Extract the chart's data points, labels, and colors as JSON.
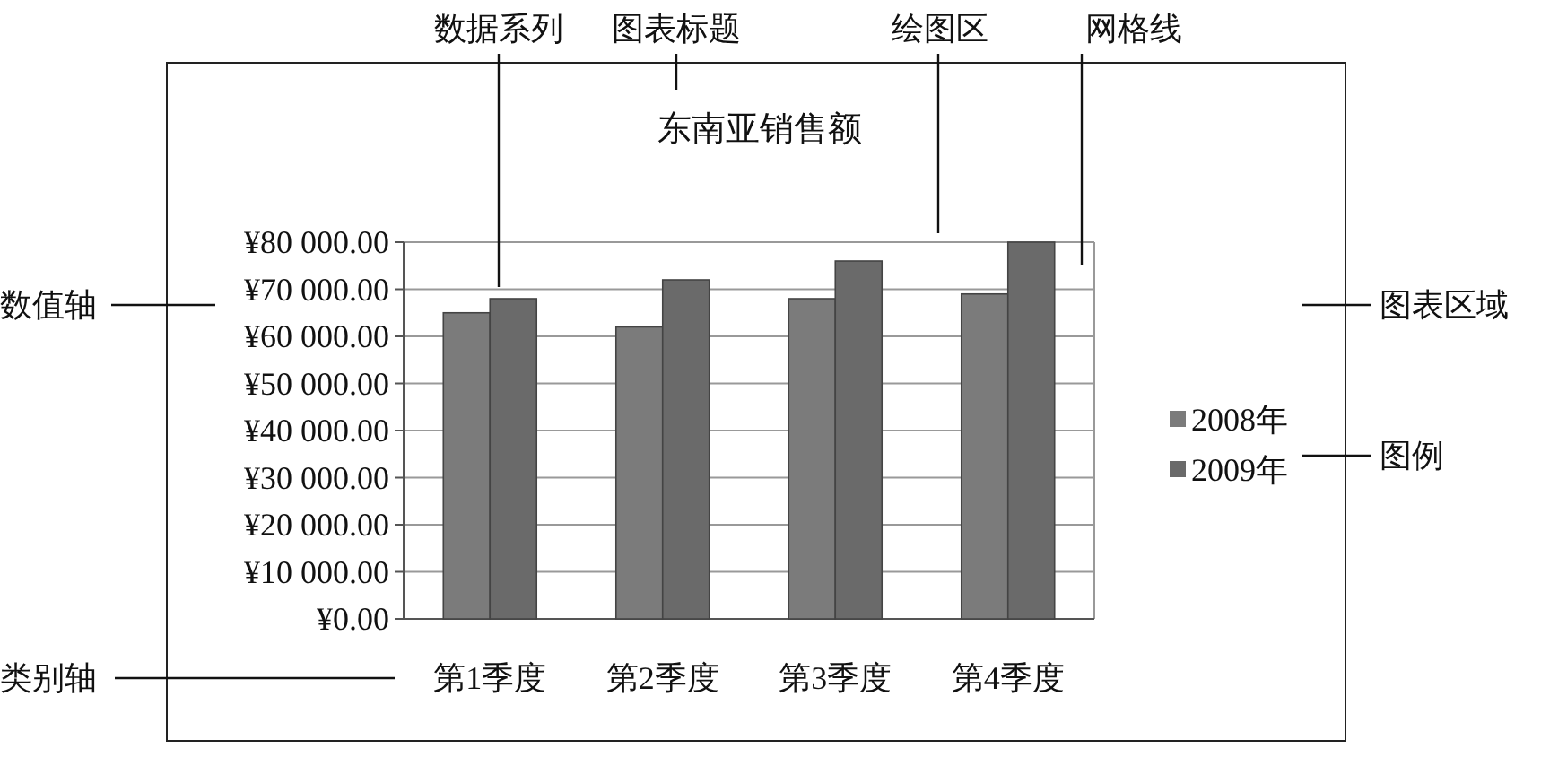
{
  "chart_data": {
    "type": "bar",
    "title": "东南亚销售额",
    "categories": [
      "第1季度",
      "第2季度",
      "第3季度",
      "第4季度"
    ],
    "series": [
      {
        "name": "2008年",
        "color": "#7b7b7b",
        "values": [
          65000,
          62000,
          68000,
          69000
        ]
      },
      {
        "name": "2009年",
        "color": "#6a6a6a",
        "values": [
          68000,
          72000,
          76000,
          80000
        ]
      }
    ],
    "ylim": [
      0,
      80000
    ],
    "yticks": [
      {
        "value": 0,
        "label": "¥0.00"
      },
      {
        "value": 10000,
        "label": "¥10 000.00"
      },
      {
        "value": 20000,
        "label": "¥20 000.00"
      },
      {
        "value": 30000,
        "label": "¥30 000.00"
      },
      {
        "value": 40000,
        "label": "¥40 000.00"
      },
      {
        "value": 50000,
        "label": "¥50 000.00"
      },
      {
        "value": 60000,
        "label": "¥60 000.00"
      },
      {
        "value": 70000,
        "label": "¥70 000.00"
      },
      {
        "value": 80000,
        "label": "¥80 000.00"
      }
    ],
    "grid": "y",
    "legend": "right",
    "annotations": [
      "数据系列",
      "图表标题",
      "绘图区",
      "网格线",
      "数值轴",
      "图表区域",
      "图例",
      "类别轴"
    ]
  }
}
